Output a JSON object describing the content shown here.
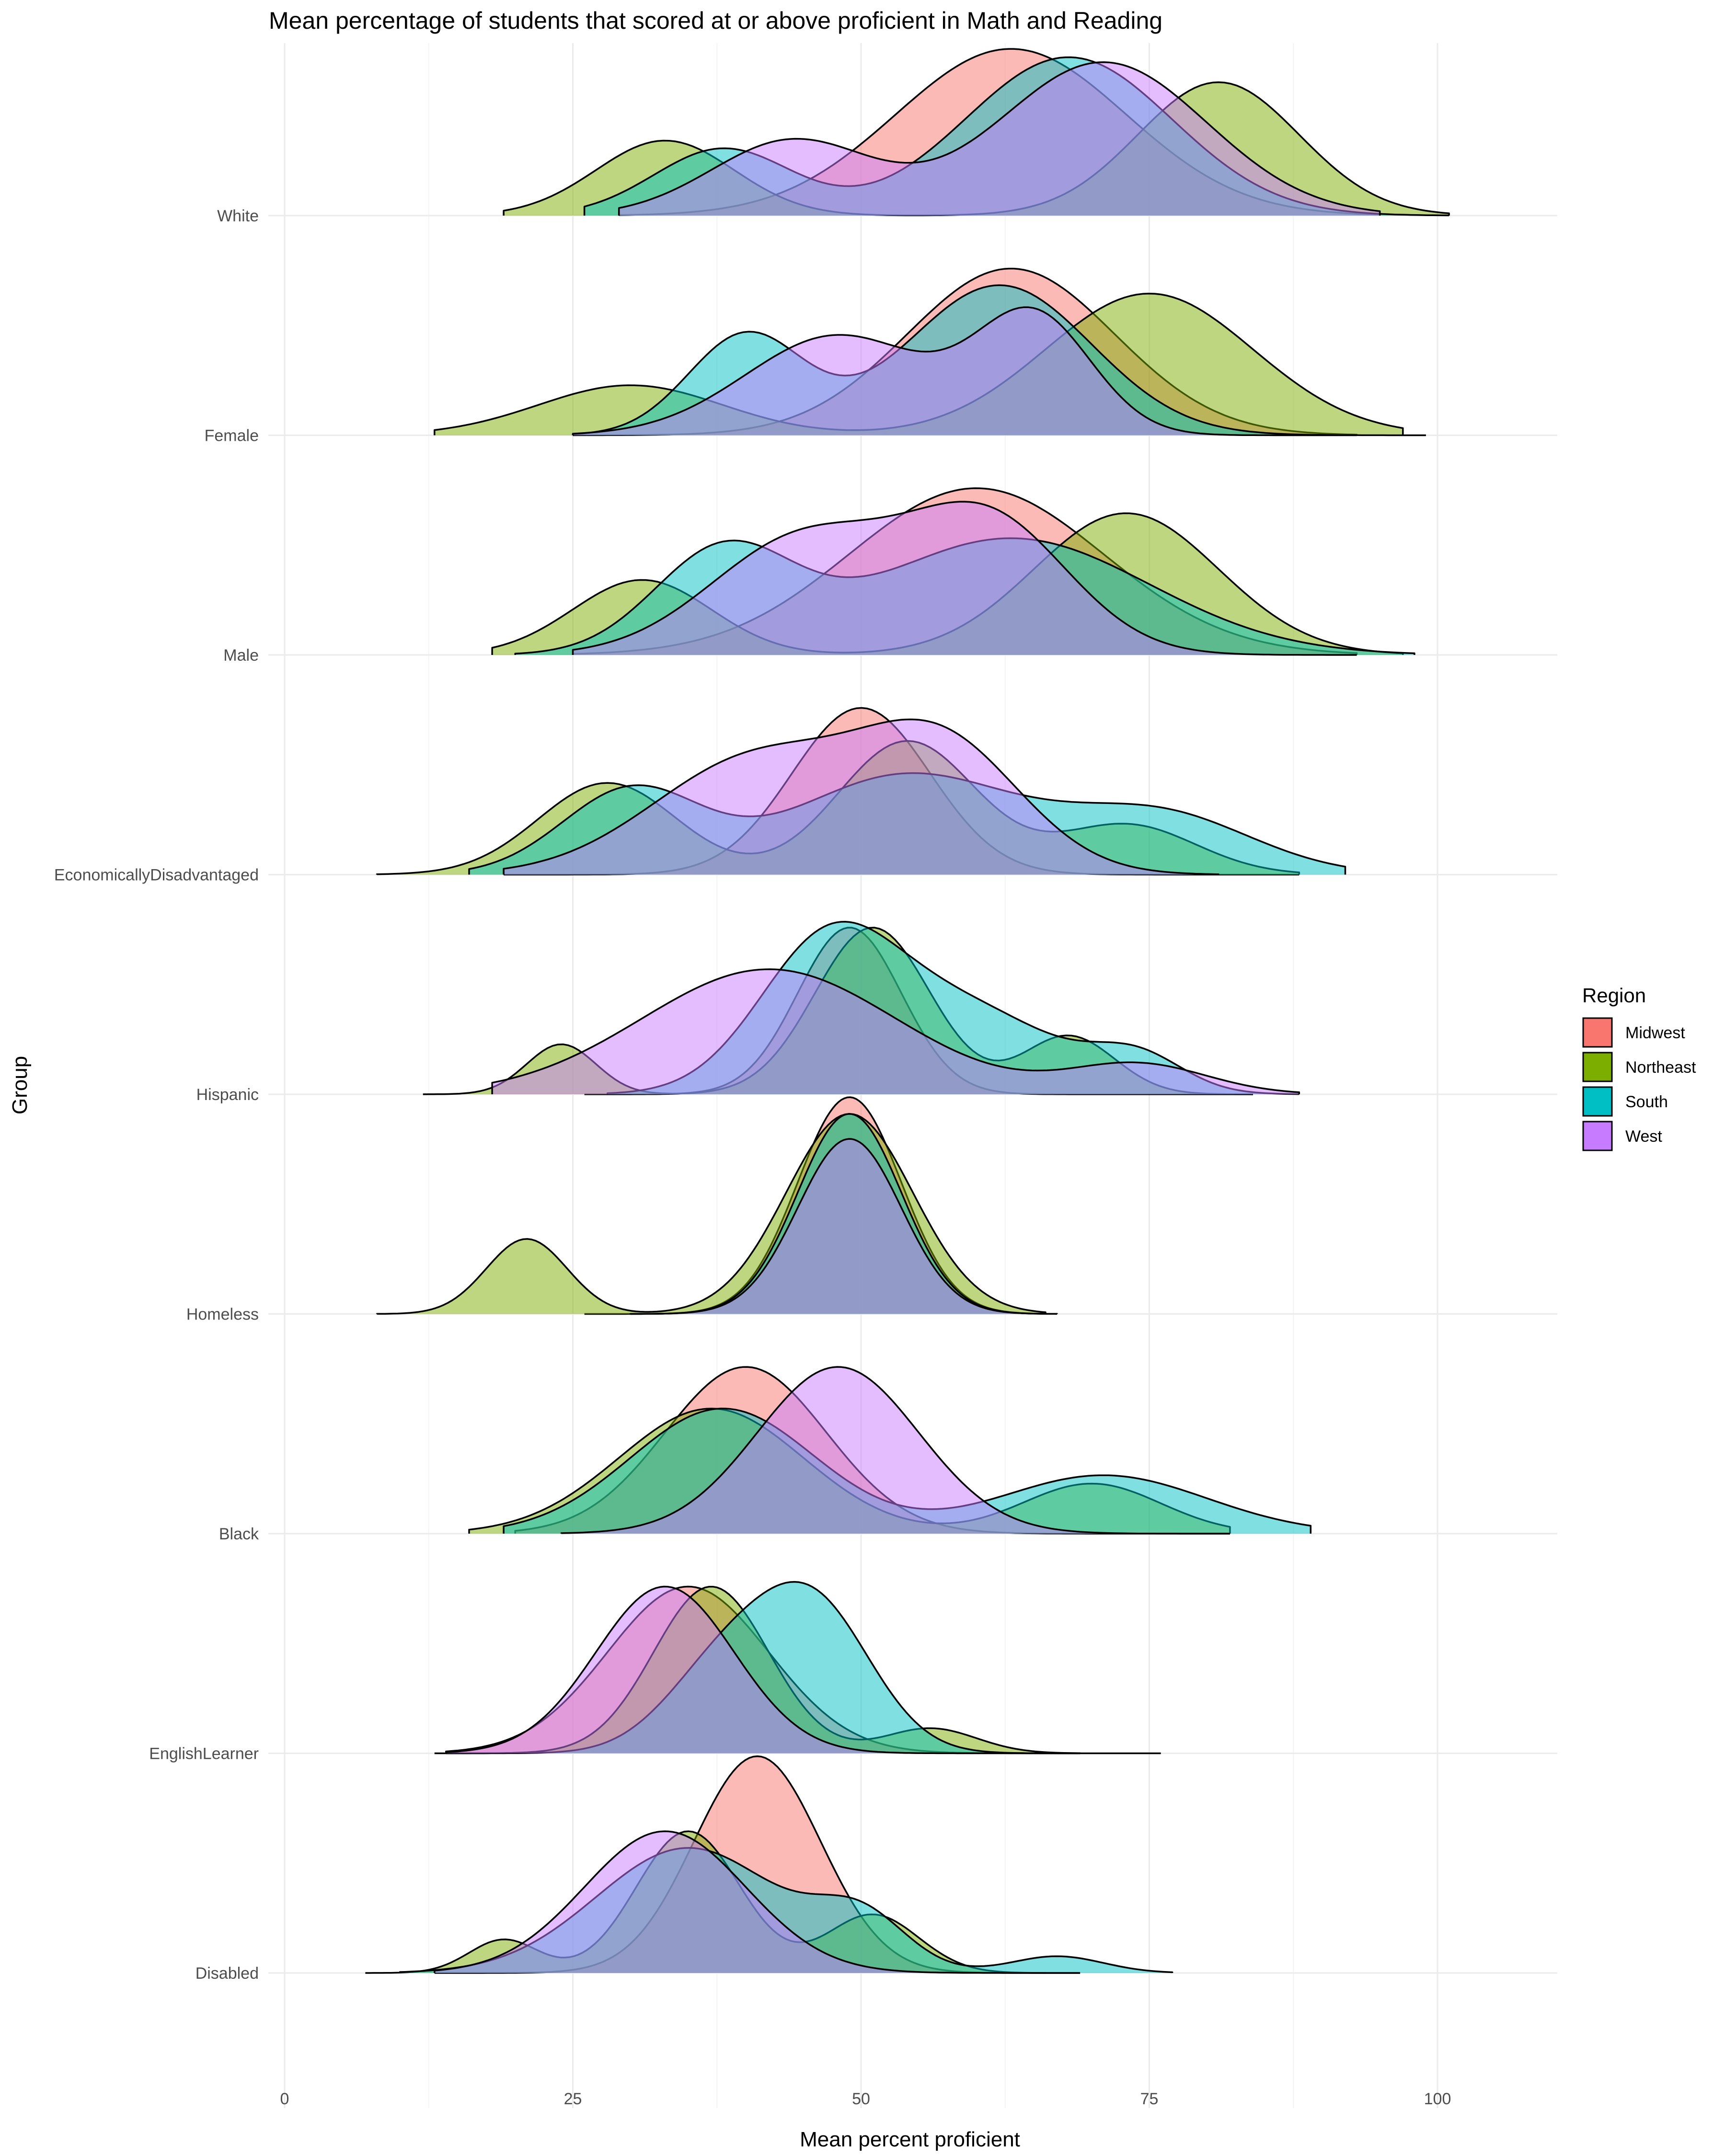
{
  "chart_data": {
    "type": "area",
    "subtype": "ridgeline-density",
    "title": "Mean percentage of students that scored at or above proficient in Math and Reading",
    "xlabel": "Mean percent proficient",
    "ylabel": "Group",
    "xlim": [
      0,
      110
    ],
    "x_ticks": [
      0,
      25,
      50,
      75,
      100
    ],
    "grid": true,
    "legend": {
      "title": "Region",
      "placement": "right"
    },
    "categories": [
      "White",
      "Female",
      "Male",
      "EconomicallyDisadvantaged",
      "Hispanic",
      "Homeless",
      "Black",
      "EnglishLearner",
      "Disabled"
    ],
    "series": [
      {
        "name": "Midwest",
        "color": "#F8766D"
      },
      {
        "name": "Northeast",
        "color": "#7CAE00"
      },
      {
        "name": "South",
        "color": "#00BFC4"
      },
      {
        "name": "West",
        "color": "#C77CFF"
      }
    ],
    "densities": {
      "White": {
        "Midwest": {
          "range": [
            29,
            95
          ],
          "peaks": [
            [
              63,
              10,
              1.0
            ]
          ]
        },
        "Northeast": {
          "range": [
            19,
            101
          ],
          "peaks": [
            [
              33,
              6,
              0.45
            ],
            [
              81,
              7,
              0.8
            ]
          ]
        },
        "South": {
          "range": [
            26,
            101
          ],
          "peaks": [
            [
              38,
              6,
              0.4
            ],
            [
              68,
              9,
              0.95
            ]
          ]
        },
        "West": {
          "range": [
            29,
            95
          ],
          "peaks": [
            [
              44,
              7,
              0.45
            ],
            [
              71,
              9,
              0.92
            ]
          ]
        }
      },
      "Female": {
        "Midwest": {
          "range": [
            25,
            93
          ],
          "peaks": [
            [
              63,
              9,
              1.0
            ]
          ]
        },
        "Northeast": {
          "range": [
            13,
            97
          ],
          "peaks": [
            [
              30,
              8,
              0.3
            ],
            [
              75,
              9,
              0.85
            ]
          ]
        },
        "South": {
          "range": [
            25,
            99
          ],
          "peaks": [
            [
              40,
              5,
              0.6
            ],
            [
              62,
              8,
              0.9
            ]
          ]
        },
        "West": {
          "range": [
            25,
            93
          ],
          "peaks": [
            [
              48,
              8,
              0.6
            ],
            [
              65,
              5,
              0.7
            ]
          ]
        }
      },
      "Male": {
        "Midwest": {
          "range": [
            25,
            93
          ],
          "peaks": [
            [
              60,
              11,
              1.0
            ]
          ]
        },
        "Northeast": {
          "range": [
            18,
            97
          ],
          "peaks": [
            [
              31,
              6,
              0.45
            ],
            [
              73,
              8,
              0.85
            ]
          ]
        },
        "South": {
          "range": [
            20,
            98
          ],
          "peaks": [
            [
              38,
              6,
              0.6
            ],
            [
              63,
              12,
              0.7
            ]
          ]
        },
        "West": {
          "range": [
            25,
            93
          ],
          "peaks": [
            [
              45,
              8,
              0.7
            ],
            [
              61,
              7,
              0.8
            ]
          ]
        }
      },
      "EconomicallyDisadvantaged": {
        "Midwest": {
          "range": [
            19,
            88
          ],
          "peaks": [
            [
              50,
              6,
              1.0
            ]
          ]
        },
        "Northeast": {
          "range": [
            8,
            88
          ],
          "peaks": [
            [
              28,
              6,
              0.55
            ],
            [
              54,
              6,
              0.8
            ],
            [
              73,
              6,
              0.3
            ]
          ]
        },
        "South": {
          "range": [
            16,
            92
          ],
          "peaks": [
            [
              30,
              6,
              0.5
            ],
            [
              54,
              10,
              0.6
            ],
            [
              76,
              8,
              0.35
            ]
          ]
        },
        "West": {
          "range": [
            19,
            81
          ],
          "peaks": [
            [
              41,
              9,
              0.7
            ],
            [
              57,
              7,
              0.75
            ]
          ]
        }
      },
      "Hispanic": {
        "Midwest": {
          "range": [
            26,
            84
          ],
          "peaks": [
            [
              49,
              4.5,
              1.0
            ]
          ]
        },
        "Northeast": {
          "range": [
            12,
            84
          ],
          "peaks": [
            [
              24,
              3,
              0.3
            ],
            [
              51,
              5,
              1.0
            ],
            [
              68,
              4,
              0.35
            ]
          ]
        },
        "South": {
          "range": [
            28,
            88
          ],
          "peaks": [
            [
              47,
              6,
              0.85
            ],
            [
              59,
              8,
              0.5
            ],
            [
              74,
              4,
              0.2
            ]
          ]
        },
        "West": {
          "range": [
            18,
            88
          ],
          "peaks": [
            [
              42,
              11,
              0.75
            ],
            [
              74,
              6,
              0.18
            ]
          ]
        }
      },
      "Homeless": {
        "Midwest": {
          "range": [
            26,
            67
          ],
          "peaks": [
            [
              49,
              4.5,
              1.3
            ]
          ]
        },
        "Northeast": {
          "range": [
            8,
            66
          ],
          "peaks": [
            [
              21,
              3.5,
              0.45
            ],
            [
              49,
              5.5,
              1.2
            ]
          ]
        },
        "South": {
          "range": [
            30,
            67
          ],
          "peaks": [
            [
              49,
              4.5,
              1.2
            ]
          ]
        },
        "West": {
          "range": [
            30,
            67
          ],
          "peaks": [
            [
              49,
              4.5,
              1.05
            ]
          ]
        }
      },
      "Black": {
        "Midwest": {
          "range": [
            20,
            82
          ],
          "peaks": [
            [
              40,
              7,
              1.0
            ]
          ]
        },
        "Northeast": {
          "range": [
            16,
            82
          ],
          "peaks": [
            [
              37,
              8,
              0.75
            ],
            [
              70,
              6,
              0.3
            ]
          ]
        },
        "South": {
          "range": [
            19,
            89
          ],
          "peaks": [
            [
              38,
              8,
              0.75
            ],
            [
              71,
              9,
              0.35
            ]
          ]
        },
        "West": {
          "range": [
            24,
            82
          ],
          "peaks": [
            [
              48,
              7,
              1.0
            ]
          ]
        }
      },
      "EnglishLearner": {
        "Midwest": {
          "range": [
            14,
            69
          ],
          "peaks": [
            [
              35,
              7,
              1.0
            ]
          ]
        },
        "Northeast": {
          "range": [
            13,
            69
          ],
          "peaks": [
            [
              37,
              5,
              1.0
            ],
            [
              56,
              4,
              0.15
            ]
          ]
        },
        "South": {
          "range": [
            14,
            76
          ],
          "peaks": [
            [
              38,
              5,
              0.5
            ],
            [
              46,
              5,
              0.85
            ]
          ]
        },
        "West": {
          "range": [
            14,
            69
          ],
          "peaks": [
            [
              33,
              6,
              1.0
            ]
          ]
        }
      },
      "Disabled": {
        "Midwest": {
          "range": [
            13,
            69
          ],
          "peaks": [
            [
              41,
              5.5,
              1.3
            ]
          ]
        },
        "Northeast": {
          "range": [
            7,
            66
          ],
          "peaks": [
            [
              19,
              3,
              0.2
            ],
            [
              35,
              4.5,
              0.85
            ],
            [
              51,
              4,
              0.35
            ]
          ]
        },
        "South": {
          "range": [
            10,
            77
          ],
          "peaks": [
            [
              35,
              8,
              0.75
            ],
            [
              50,
              4,
              0.3
            ],
            [
              67,
              4,
              0.1
            ]
          ]
        },
        "West": {
          "range": [
            13,
            69
          ],
          "peaks": [
            [
              33,
              7,
              0.85
            ]
          ]
        }
      }
    }
  }
}
